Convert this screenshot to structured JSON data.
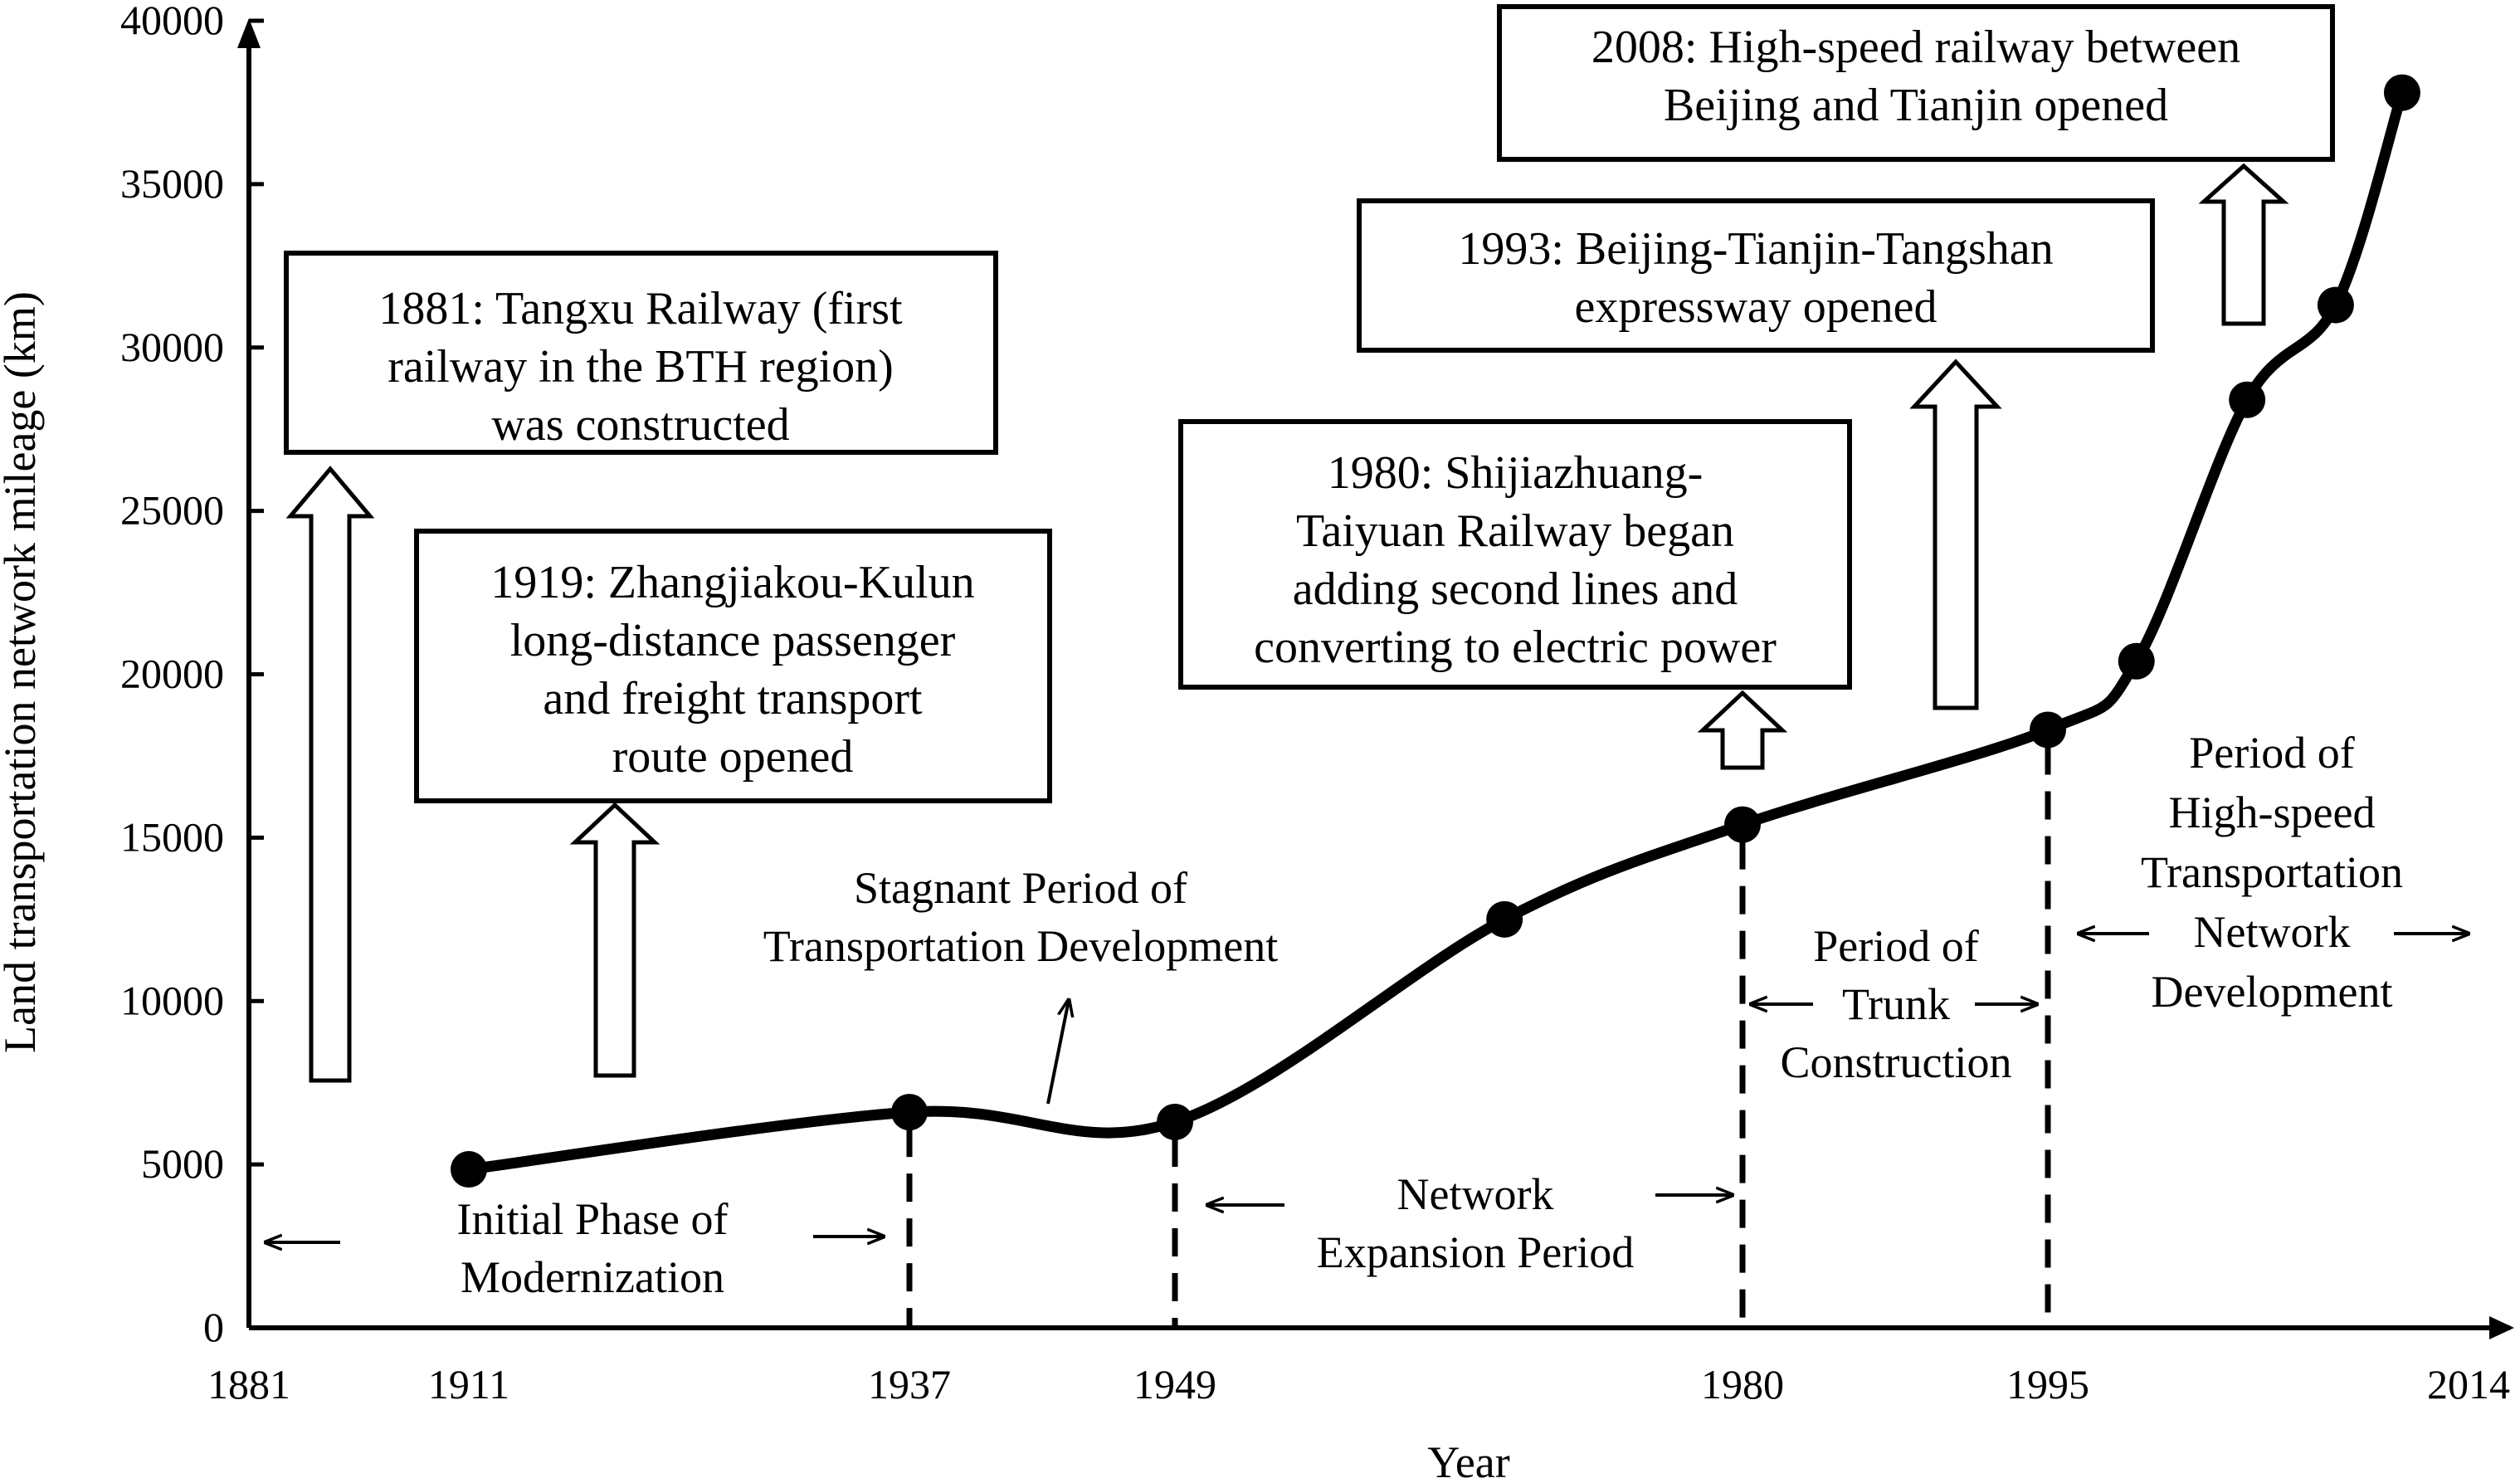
{
  "chart_data": {
    "type": "line",
    "xlabel": "Year",
    "ylabel": "Land transportation network mileage (km)",
    "x_ticks": [
      "1881",
      "1911",
      "1937",
      "1949",
      "1980",
      "1995",
      "2014"
    ],
    "y_ticks": [
      "0",
      "5000",
      "10000",
      "15000",
      "20000",
      "25000",
      "30000",
      "35000",
      "40000"
    ],
    "ylim": [
      0,
      40000
    ],
    "series": [
      {
        "points": [
          {
            "x": 1911,
            "y": 4850
          },
          {
            "x": 1937,
            "y": 6600
          },
          {
            "x": 1949,
            "y": 6300
          },
          {
            "x": 1967,
            "y": 12500
          },
          {
            "x": 1980,
            "y": 15400
          },
          {
            "x": 1995,
            "y": 18300
          },
          {
            "x": 1999,
            "y": 20400
          },
          {
            "x": 2004,
            "y": 28400
          },
          {
            "x": 2008,
            "y": 31300
          },
          {
            "x": 2011,
            "y": 37800
          }
        ]
      }
    ],
    "period_boundaries": [
      1937,
      1949,
      1980,
      1995
    ],
    "annotations": [
      {
        "lines": [
          "1881: Tangxu Railway (first",
          "railway in the BTH region)",
          "was constructed"
        ]
      },
      {
        "lines": [
          "1919: Zhangjiakou-Kulun",
          "long-distance passenger",
          "and freight transport",
          "route opened"
        ]
      },
      {
        "lines": [
          "1980: Shijiazhuang-",
          "Taiyuan Railway began",
          "adding second lines and",
          "converting to electric power"
        ]
      },
      {
        "lines": [
          "1993: Beijing-Tianjin-Tangshan",
          "expressway opened"
        ]
      },
      {
        "lines": [
          "2008: High-speed railway between",
          "Beijing and Tianjin opened"
        ]
      }
    ],
    "periods": [
      {
        "lines": [
          "Initial Phase of",
          "Modernization"
        ]
      },
      {
        "lines": [
          "Stagnant Period of",
          "Transportation Development"
        ]
      },
      {
        "lines": [
          "Network",
          "Expansion Period"
        ]
      },
      {
        "lines": [
          "Period of",
          "Trunk",
          "Construction"
        ]
      },
      {
        "lines": [
          "Period of",
          "High-speed",
          "Transportation",
          "Network",
          "Development"
        ]
      }
    ]
  }
}
